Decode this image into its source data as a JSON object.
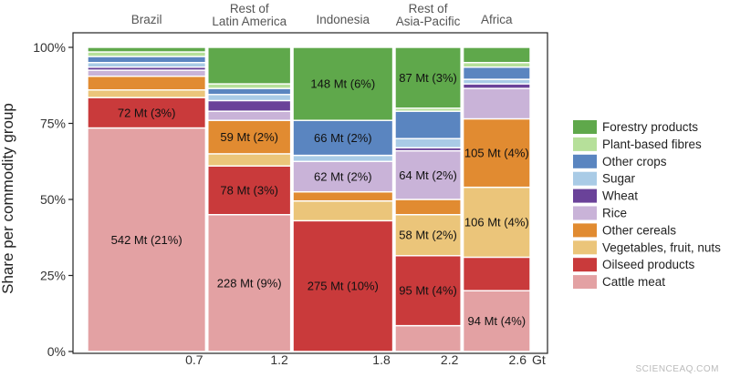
{
  "chart_data": {
    "type": "bar",
    "subtype": "mosaic",
    "ylabel": "Share per commodity group",
    "yticks": [
      "0%",
      "25%",
      "50%",
      "75%",
      "100%"
    ],
    "ylim": [
      0,
      100
    ],
    "x_unit": "Gt",
    "x_cumulative_ticks": [
      {
        "value": 0.7,
        "label": "0.7"
      },
      {
        "value": 1.2,
        "label": "1.2"
      },
      {
        "value": 1.8,
        "label": "1.8"
      },
      {
        "value": 2.2,
        "label": "2.2"
      },
      {
        "value": 2.6,
        "label": "2.6"
      }
    ],
    "xlim": [
      0,
      2.6
    ],
    "categories": [
      "Cattle meat",
      "Oilseed products",
      "Vegetables, fruit, nuts",
      "Other cereals",
      "Rice",
      "Wheat",
      "Sugar",
      "Other crops",
      "Plant-based fibres",
      "Forestry products"
    ],
    "colors": {
      "Cattle meat": "#e3a1a3",
      "Oilseed products": "#c93a3b",
      "Vegetables, fruit, nuts": "#ebc57a",
      "Other cereals": "#e18b31",
      "Rice": "#c9b3d8",
      "Wheat": "#6a4299",
      "Sugar": "#a9cbe6",
      "Other crops": "#5a85c0",
      "Plant-based fibres": "#b6e09a",
      "Forestry products": "#5fa84b"
    },
    "legend": {
      "position": "right",
      "order": [
        "Forestry products",
        "Plant-based fibres",
        "Other crops",
        "Sugar",
        "Wheat",
        "Rice",
        "Other cereals",
        "Vegetables, fruit, nuts",
        "Oilseed products",
        "Cattle meat"
      ]
    },
    "columns": [
      {
        "region": [
          "Brazil"
        ],
        "x_start": 0.0,
        "x_end": 0.7,
        "segments": [
          {
            "category": "Cattle meat",
            "share": 73.5,
            "label": "542 Mt (21%)"
          },
          {
            "category": "Oilseed products",
            "share": 10.0,
            "label": "72 Mt (3%)"
          },
          {
            "category": "Vegetables, fruit, nuts",
            "share": 2.5,
            "label": ""
          },
          {
            "category": "Other cereals",
            "share": 4.5,
            "label": ""
          },
          {
            "category": "Rice",
            "share": 2.0,
            "label": ""
          },
          {
            "category": "Wheat",
            "share": 1.0,
            "label": ""
          },
          {
            "category": "Sugar",
            "share": 1.5,
            "label": ""
          },
          {
            "category": "Other crops",
            "share": 2.0,
            "label": ""
          },
          {
            "category": "Plant-based fibres",
            "share": 1.5,
            "label": ""
          },
          {
            "category": "Forestry products",
            "share": 1.5,
            "label": ""
          }
        ]
      },
      {
        "region": [
          "Rest of",
          "Latin America"
        ],
        "x_start": 0.7,
        "x_end": 1.2,
        "segments": [
          {
            "category": "Cattle meat",
            "share": 45.0,
            "label": "228 Mt (9%)"
          },
          {
            "category": "Oilseed products",
            "share": 16.0,
            "label": "78 Mt (3%)"
          },
          {
            "category": "Vegetables, fruit, nuts",
            "share": 4.0,
            "label": ""
          },
          {
            "category": "Other cereals",
            "share": 11.0,
            "label": "59 Mt (2%)"
          },
          {
            "category": "Rice",
            "share": 3.0,
            "label": ""
          },
          {
            "category": "Wheat",
            "share": 3.5,
            "label": ""
          },
          {
            "category": "Sugar",
            "share": 2.0,
            "label": ""
          },
          {
            "category": "Other crops",
            "share": 2.0,
            "label": ""
          },
          {
            "category": "Plant-based fibres",
            "share": 1.5,
            "label": ""
          },
          {
            "category": "Forestry products",
            "share": 12.0,
            "label": ""
          }
        ]
      },
      {
        "region": [
          "Indonesia"
        ],
        "x_start": 1.2,
        "x_end": 1.8,
        "segments": [
          {
            "category": "Oilseed products",
            "share": 43.0,
            "label": "275 Mt (10%)"
          },
          {
            "category": "Vegetables, fruit, nuts",
            "share": 6.5,
            "label": ""
          },
          {
            "category": "Other cereals",
            "share": 3.0,
            "label": ""
          },
          {
            "category": "Rice",
            "share": 10.0,
            "label": "62 Mt (2%)"
          },
          {
            "category": "Sugar",
            "share": 2.0,
            "label": ""
          },
          {
            "category": "Other crops",
            "share": 11.5,
            "label": "66 Mt (2%)"
          },
          {
            "category": "Forestry products",
            "share": 24.0,
            "label": "148 Mt (6%)"
          }
        ]
      },
      {
        "region": [
          "Rest of",
          "Asia-Pacific"
        ],
        "x_start": 1.8,
        "x_end": 2.2,
        "segments": [
          {
            "category": "Cattle meat",
            "share": 8.5,
            "label": ""
          },
          {
            "category": "Oilseed products",
            "share": 23.0,
            "label": "95 Mt (4%)"
          },
          {
            "category": "Vegetables, fruit, nuts",
            "share": 13.5,
            "label": "58 Mt (2%)"
          },
          {
            "category": "Other cereals",
            "share": 5.0,
            "label": ""
          },
          {
            "category": "Rice",
            "share": 16.0,
            "label": "64 Mt (2%)"
          },
          {
            "category": "Wheat",
            "share": 1.0,
            "label": ""
          },
          {
            "category": "Sugar",
            "share": 3.0,
            "label": ""
          },
          {
            "category": "Other crops",
            "share": 9.0,
            "label": ""
          },
          {
            "category": "Plant-based fibres",
            "share": 1.0,
            "label": ""
          },
          {
            "category": "Forestry products",
            "share": 20.0,
            "label": "87 Mt (3%)"
          }
        ]
      },
      {
        "region": [
          "Africa"
        ],
        "x_start": 2.2,
        "x_end": 2.6,
        "segments": [
          {
            "category": "Cattle meat",
            "share": 20.0,
            "label": "94 Mt (4%)"
          },
          {
            "category": "Oilseed products",
            "share": 11.0,
            "label": ""
          },
          {
            "category": "Vegetables, fruit, nuts",
            "share": 23.0,
            "label": "106 Mt (4%)"
          },
          {
            "category": "Other cereals",
            "share": 22.5,
            "label": "105 Mt (4%)"
          },
          {
            "category": "Rice",
            "share": 10.0,
            "label": ""
          },
          {
            "category": "Wheat",
            "share": 1.5,
            "label": ""
          },
          {
            "category": "Sugar",
            "share": 1.5,
            "label": ""
          },
          {
            "category": "Other crops",
            "share": 4.0,
            "label": ""
          },
          {
            "category": "Plant-based fibres",
            "share": 1.5,
            "label": ""
          },
          {
            "category": "Forestry products",
            "share": 5.0,
            "label": ""
          }
        ]
      }
    ]
  },
  "watermark": "SCIENCEAQ.COM"
}
